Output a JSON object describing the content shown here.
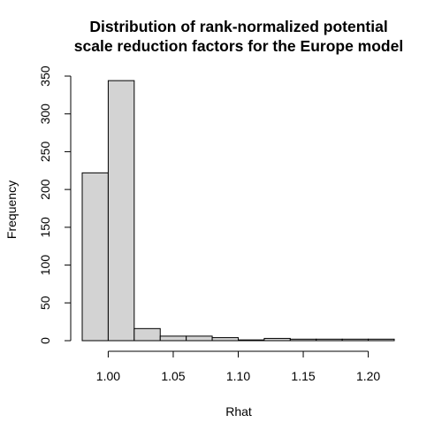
{
  "chart_data": {
    "type": "bar",
    "title_lines": [
      "Distribution of rank-normalized potential",
      "scale reduction factors for the Europe model"
    ],
    "xlabel": "Rhat",
    "ylabel": "Frequency",
    "bin_edges": [
      0.98,
      1.0,
      1.02,
      1.04,
      1.06,
      1.08,
      1.1,
      1.12,
      1.14,
      1.16,
      1.18,
      1.2,
      1.22
    ],
    "values": [
      222,
      344,
      16,
      6,
      6,
      4,
      1,
      3,
      2,
      2,
      2,
      2
    ],
    "xlim": [
      0.98,
      1.22
    ],
    "ylim": [
      0,
      350
    ],
    "x_ticks": [
      1.0,
      1.05,
      1.1,
      1.15,
      1.2
    ],
    "x_tick_labels": [
      "1.00",
      "1.05",
      "1.10",
      "1.15",
      "1.20"
    ],
    "y_ticks": [
      0,
      50,
      100,
      150,
      200,
      250,
      300,
      350
    ],
    "y_tick_labels": [
      "0",
      "50",
      "100",
      "150",
      "200",
      "250",
      "300",
      "350"
    ],
    "grid": false,
    "bar_color": "#d3d3d3"
  }
}
